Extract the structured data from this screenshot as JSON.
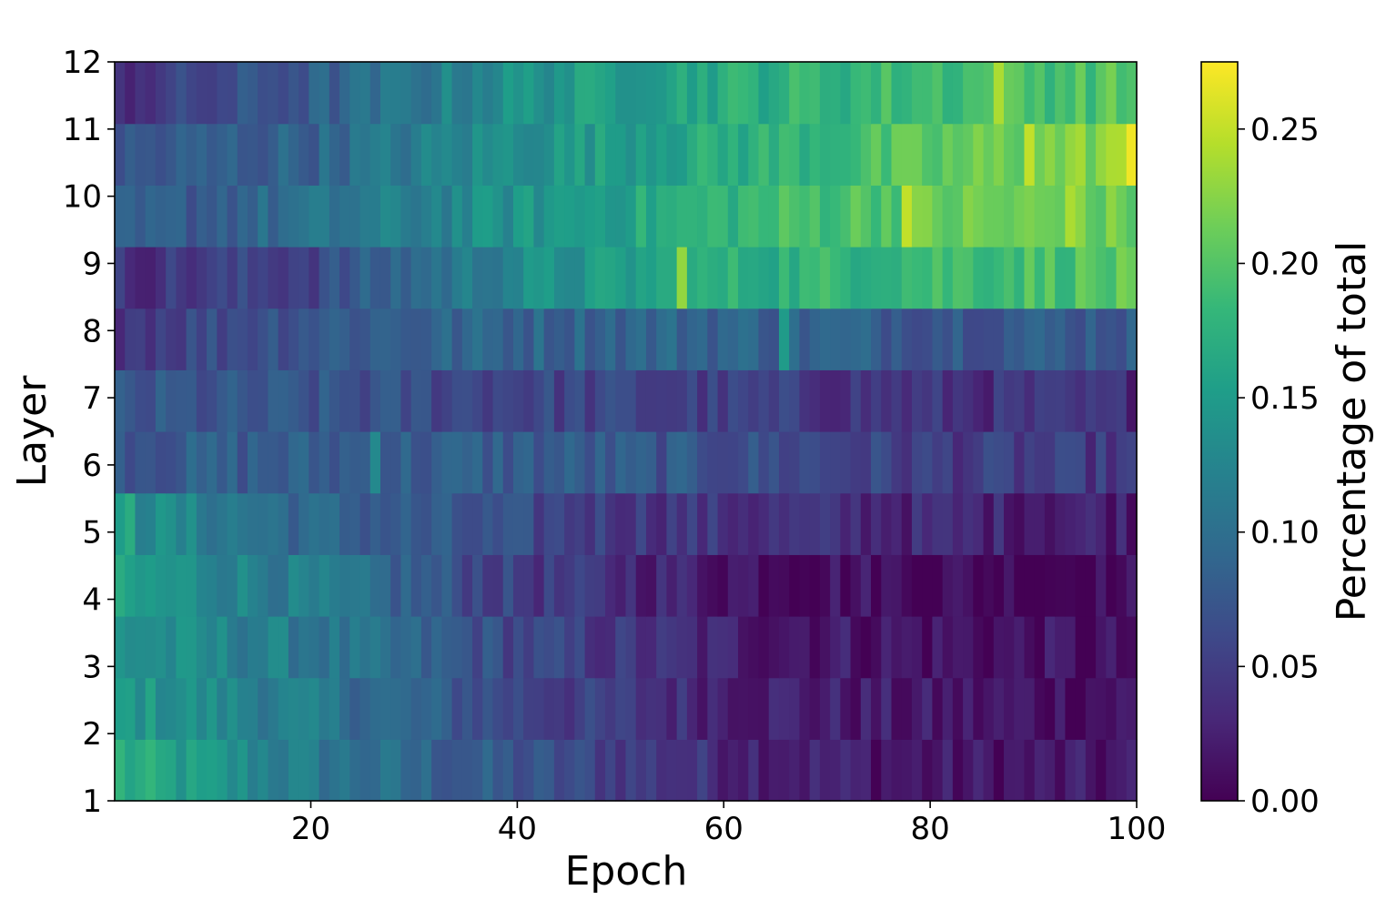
{
  "chart_data": {
    "type": "heatmap",
    "xlabel": "Epoch",
    "ylabel": "Layer",
    "colorbar_label": "Percentage of total",
    "xlim": [
      1,
      100
    ],
    "ylim": [
      1,
      12
    ],
    "x_ticks": [
      20,
      40,
      60,
      80,
      100
    ],
    "x_tick_labels": [
      "20",
      "40",
      "60",
      "80",
      "100"
    ],
    "y_ticks": [
      1,
      2,
      3,
      4,
      5,
      6,
      7,
      8,
      9,
      10,
      11,
      12
    ],
    "y_tick_labels": [
      "1",
      "2",
      "3",
      "4",
      "5",
      "6",
      "7",
      "8",
      "9",
      "10",
      "11",
      "12"
    ],
    "color_range": [
      0.0,
      0.275
    ],
    "colorbar_ticks": [
      0.0,
      0.05,
      0.1,
      0.15,
      0.2,
      0.25
    ],
    "colorbar_tick_labels": [
      "0.00",
      "0.05",
      "0.10",
      "0.15",
      "0.20",
      "0.25"
    ],
    "colormap": "viridis",
    "colormap_stops": [
      "#440154",
      "#482878",
      "#3e4989",
      "#31688e",
      "#26828e",
      "#1f9e89",
      "#35b779",
      "#6ece58",
      "#b5de2b",
      "#fde725"
    ],
    "grid": false,
    "legend": "colorbar-right",
    "layers": [
      1,
      2,
      3,
      4,
      5,
      6,
      7,
      8,
      9,
      10,
      11,
      12
    ],
    "epoch_count": 100,
    "layer_value_profiles": [
      {
        "layer": 1,
        "epochs": [
          1,
          20,
          40,
          60,
          80,
          100
        ],
        "values": [
          0.17,
          0.11,
          0.07,
          0.035,
          0.015,
          0.015
        ]
      },
      {
        "layer": 2,
        "epochs": [
          1,
          20,
          40,
          60,
          80,
          100
        ],
        "values": [
          0.15,
          0.11,
          0.06,
          0.03,
          0.015,
          0.015
        ]
      },
      {
        "layer": 3,
        "epochs": [
          1,
          20,
          40,
          60,
          80,
          100
        ],
        "values": [
          0.14,
          0.11,
          0.06,
          0.025,
          0.015,
          0.008
        ]
      },
      {
        "layer": 4,
        "epochs": [
          1,
          20,
          40,
          60,
          80,
          100
        ],
        "values": [
          0.15,
          0.11,
          0.05,
          0.02,
          0.008,
          0.005
        ]
      },
      {
        "layer": 5,
        "epochs": [
          1,
          20,
          40,
          60,
          80,
          100
        ],
        "values": [
          0.14,
          0.09,
          0.06,
          0.04,
          0.03,
          0.025
        ]
      },
      {
        "layer": 6,
        "epochs": [
          1,
          20,
          40,
          60,
          80,
          100
        ],
        "values": [
          0.08,
          0.08,
          0.08,
          0.07,
          0.05,
          0.045
        ]
      },
      {
        "layer": 7,
        "epochs": [
          1,
          20,
          40,
          60,
          80,
          100
        ],
        "values": [
          0.07,
          0.07,
          0.06,
          0.05,
          0.04,
          0.035
        ]
      },
      {
        "layer": 8,
        "epochs": [
          1,
          20,
          40,
          60,
          80,
          100
        ],
        "values": [
          0.05,
          0.08,
          0.09,
          0.09,
          0.08,
          0.08
        ]
      },
      {
        "layer": 9,
        "epochs": [
          1,
          20,
          40,
          60,
          80,
          100
        ],
        "values": [
          0.04,
          0.06,
          0.13,
          0.17,
          0.19,
          0.2
        ]
      },
      {
        "layer": 10,
        "epochs": [
          1,
          20,
          40,
          60,
          80,
          100
        ],
        "values": [
          0.07,
          0.1,
          0.14,
          0.18,
          0.21,
          0.21
        ]
      },
      {
        "layer": 11,
        "epochs": [
          1,
          20,
          40,
          60,
          80,
          100
        ],
        "values": [
          0.07,
          0.09,
          0.14,
          0.17,
          0.2,
          0.23
        ]
      },
      {
        "layer": 12,
        "epochs": [
          1,
          20,
          40,
          60,
          80,
          100
        ],
        "values": [
          0.04,
          0.08,
          0.14,
          0.17,
          0.19,
          0.2
        ]
      }
    ],
    "noise_amplitude": 0.02,
    "notable_cells": [
      {
        "layer": 11,
        "epoch": 100,
        "value": 0.27
      },
      {
        "layer": 12,
        "epoch": 87,
        "value": 0.24
      },
      {
        "layer": 10,
        "epoch": 78,
        "value": 0.25
      },
      {
        "layer": 10,
        "epoch": 94,
        "value": 0.24
      },
      {
        "layer": 9,
        "epoch": 56,
        "value": 0.23
      },
      {
        "layer": 11,
        "epoch": 90,
        "value": 0.25
      },
      {
        "layer": 11,
        "epoch": 98,
        "value": 0.24
      },
      {
        "layer": 1,
        "epoch": 1,
        "value": 0.18
      },
      {
        "layer": 5,
        "epoch": 2,
        "value": 0.17
      },
      {
        "layer": 6,
        "epoch": 26,
        "value": 0.13
      },
      {
        "layer": 8,
        "epoch": 66,
        "value": 0.15
      }
    ]
  }
}
